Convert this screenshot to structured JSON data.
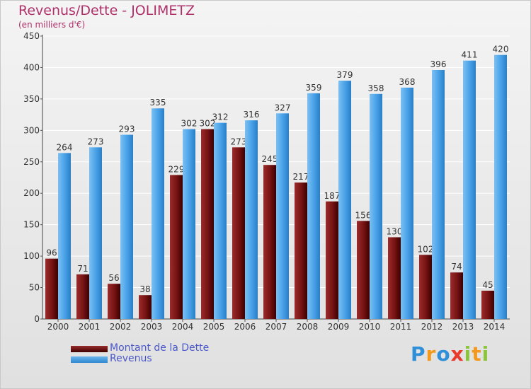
{
  "chart_data": {
    "type": "bar",
    "title": "Revenus/Dette - JOLIMETZ",
    "subtitle": "(en milliers d'€)",
    "categories": [
      "2000",
      "2001",
      "2002",
      "2003",
      "2004",
      "2005",
      "2006",
      "2007",
      "2008",
      "2009",
      "2010",
      "2011",
      "2012",
      "2013",
      "2014"
    ],
    "series": [
      {
        "name": "Montant de la Dette",
        "color": "#7a1414",
        "values": [
          96,
          71,
          56,
          38,
          229,
          302,
          273,
          245,
          217,
          187,
          156,
          130,
          102,
          74,
          45
        ]
      },
      {
        "name": "Revenus",
        "color": "#4aa3e8",
        "values": [
          264,
          273,
          293,
          335,
          302,
          312,
          316,
          327,
          359,
          379,
          358,
          368,
          396,
          411,
          420
        ]
      }
    ],
    "ylim": [
      0,
      450
    ],
    "yticks": [
      0,
      50,
      100,
      150,
      200,
      250,
      300,
      350,
      400,
      450
    ],
    "grid": true,
    "legend_position": "bottom-left"
  },
  "logo": {
    "letters": [
      {
        "ch": "P",
        "color": "#2f8fd8"
      },
      {
        "ch": "r",
        "color": "#f39a1e"
      },
      {
        "ch": "o",
        "color": "#2f8fd8"
      },
      {
        "ch": "x",
        "color": "#e93a2a"
      },
      {
        "ch": "i",
        "color": "#8cc43c"
      },
      {
        "ch": "t",
        "color": "#f39a1e"
      },
      {
        "ch": "i",
        "color": "#8cc43c"
      }
    ]
  }
}
